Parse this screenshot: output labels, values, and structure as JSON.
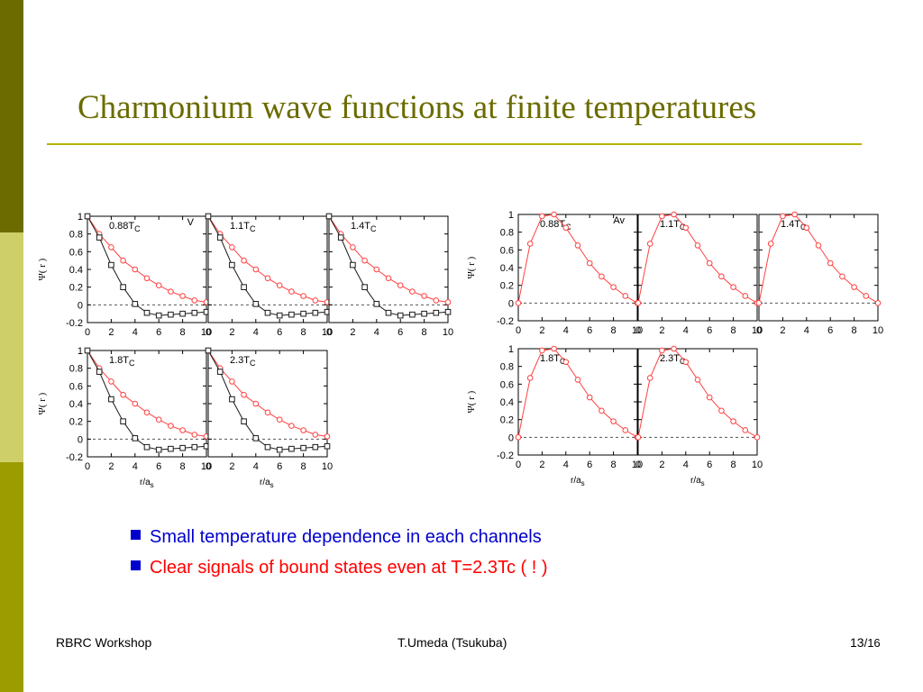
{
  "slide": {
    "title": "Charmonium wave functions at finite temperatures",
    "bullets": [
      {
        "text": "Small temperature dependence in each channels",
        "color": "#0000cc"
      },
      {
        "text": "Clear signals of bound states even at T=2.3Tc ( ! )",
        "color": "#ff0000"
      }
    ],
    "footer": {
      "left": "RBRC Workshop",
      "center": "T.Umeda (Tsukuba)",
      "page": "13",
      "total": "/16"
    },
    "colors": {
      "accent": "#6b6b00",
      "rule": "#b3b300",
      "series_red": "#ff4040",
      "series_black": "#1a1a1a"
    }
  },
  "chart_data": [
    {
      "type": "line",
      "group": "V",
      "channel_label": "V",
      "ylabel": "Ψ( r )",
      "xlabel": "r/a",
      "xlabel_sub": "s",
      "xlim": [
        0,
        10
      ],
      "ylim": [
        -0.2,
        1.0
      ],
      "x_ticks": [
        "0",
        "2",
        "4",
        "6",
        "8",
        "10"
      ],
      "y_ticks": [
        "-0.2",
        "0",
        "0.2",
        "0.4",
        "0.6",
        "0.8",
        "1"
      ],
      "panels": [
        {
          "label": "0.88T",
          "label_sub": "C"
        },
        {
          "label": "1.1T",
          "label_sub": "C"
        },
        {
          "label": "1.4T",
          "label_sub": "C"
        },
        {
          "label": "1.8T",
          "label_sub": "C"
        },
        {
          "label": "2.3T",
          "label_sub": "C"
        }
      ],
      "series": [
        {
          "x": [
            0,
            1,
            2,
            3,
            4,
            5,
            6,
            7,
            8,
            9,
            10
          ],
          "values": [
            1.0,
            0.8,
            0.65,
            0.5,
            0.4,
            0.3,
            0.22,
            0.15,
            0.1,
            0.05,
            0.03
          ],
          "color": "#ff4040",
          "marker": "circle"
        },
        {
          "x": [
            0,
            1,
            2,
            3,
            4,
            5,
            6,
            7,
            8,
            9,
            10
          ],
          "values": [
            1.0,
            0.76,
            0.45,
            0.2,
            0.01,
            -0.09,
            -0.12,
            -0.11,
            -0.1,
            -0.09,
            -0.08
          ],
          "color": "#1a1a1a",
          "marker": "square"
        }
      ]
    },
    {
      "type": "line",
      "group": "Av",
      "channel_label": "Av",
      "ylabel": "Ψ( r )",
      "xlabel": "r/a",
      "xlabel_sub": "s",
      "xlim": [
        0,
        10
      ],
      "ylim": [
        -0.2,
        1.0
      ],
      "x_ticks": [
        "0",
        "2",
        "4",
        "6",
        "8",
        "10"
      ],
      "y_ticks": [
        "-0.2",
        "0",
        "0.2",
        "0.4",
        "0.6",
        "0.8",
        "1"
      ],
      "panels": [
        {
          "label": "0.88T",
          "label_sub": "C"
        },
        {
          "label": "1.1T",
          "label_sub": "C"
        },
        {
          "label": "1.4T",
          "label_sub": "C"
        },
        {
          "label": "1.8T",
          "label_sub": "C"
        },
        {
          "label": "2.3T",
          "label_sub": "C"
        }
      ],
      "series": [
        {
          "x": [
            0,
            1,
            2,
            3,
            4,
            5,
            6,
            7,
            8,
            9,
            10
          ],
          "values": [
            0.0,
            0.67,
            0.98,
            1.0,
            0.85,
            0.65,
            0.45,
            0.3,
            0.18,
            0.08,
            0.0
          ],
          "color": "#ff4040",
          "marker": "circle"
        }
      ]
    }
  ]
}
